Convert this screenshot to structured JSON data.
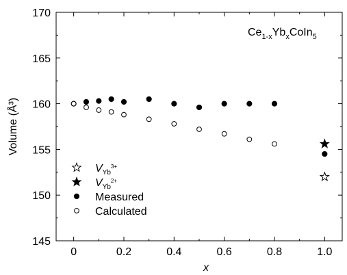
{
  "chart_data": {
    "type": "scatter",
    "title": "",
    "annotation": {
      "parts": [
        {
          "text": "Ce",
          "shift": "base"
        },
        {
          "text": "1-x",
          "shift": "sub"
        },
        {
          "text": "Yb",
          "shift": "base"
        },
        {
          "text": "x",
          "shift": "sub"
        },
        {
          "text": "CoIn",
          "shift": "base"
        },
        {
          "text": "5",
          "shift": "sub"
        }
      ]
    },
    "xlabel": "x",
    "ylabel": "Volume (Å³)",
    "xlim": [
      -0.07,
      1.07
    ],
    "ylim": [
      145,
      170
    ],
    "xticks": [
      0,
      0.2,
      0.4,
      0.6,
      0.8,
      1.0
    ],
    "xtick_labels": [
      "0",
      "0.2",
      "0.4",
      "0.6",
      "0.8",
      "1.0"
    ],
    "yticks": [
      145,
      150,
      155,
      160,
      165,
      170
    ],
    "ytick_labels": [
      "145",
      "150",
      "155",
      "160",
      "165",
      "170"
    ],
    "grid": false,
    "legend_position": "bottom-left",
    "series": [
      {
        "name": "Measured",
        "marker": "filled-circle",
        "x": [
          0,
          0.05,
          0.1,
          0.15,
          0.2,
          0.3,
          0.4,
          0.5,
          0.6,
          0.7,
          0.8,
          1.0
        ],
        "y": [
          160.0,
          160.2,
          160.3,
          160.5,
          160.2,
          160.5,
          160.0,
          159.6,
          160.0,
          160.0,
          160.0,
          154.5
        ]
      },
      {
        "name": "Calculated",
        "marker": "open-circle",
        "x": [
          0,
          0.05,
          0.1,
          0.15,
          0.2,
          0.3,
          0.4,
          0.5,
          0.6,
          0.7,
          0.8
        ],
        "y": [
          160.0,
          159.6,
          159.3,
          159.1,
          158.8,
          158.3,
          157.8,
          157.2,
          156.7,
          156.1,
          155.6
        ]
      },
      {
        "name": "V_Yb3+",
        "marker": "open-star",
        "x": [
          1.0
        ],
        "y": [
          152.0
        ]
      },
      {
        "name": "V_Yb2+",
        "marker": "filled-star",
        "x": [
          1.0
        ],
        "y": [
          155.6
        ]
      }
    ],
    "legend": [
      {
        "marker": "open-star",
        "label": {
          "main": "V",
          "sub": "Yb",
          "sup": "3+"
        }
      },
      {
        "marker": "filled-star",
        "label": {
          "main": "V",
          "sub": "Yb",
          "sup": "2+"
        }
      },
      {
        "marker": "filled-circle",
        "label": {
          "main": "Measured"
        }
      },
      {
        "marker": "open-circle",
        "label": {
          "main": "Calculated"
        }
      }
    ]
  }
}
